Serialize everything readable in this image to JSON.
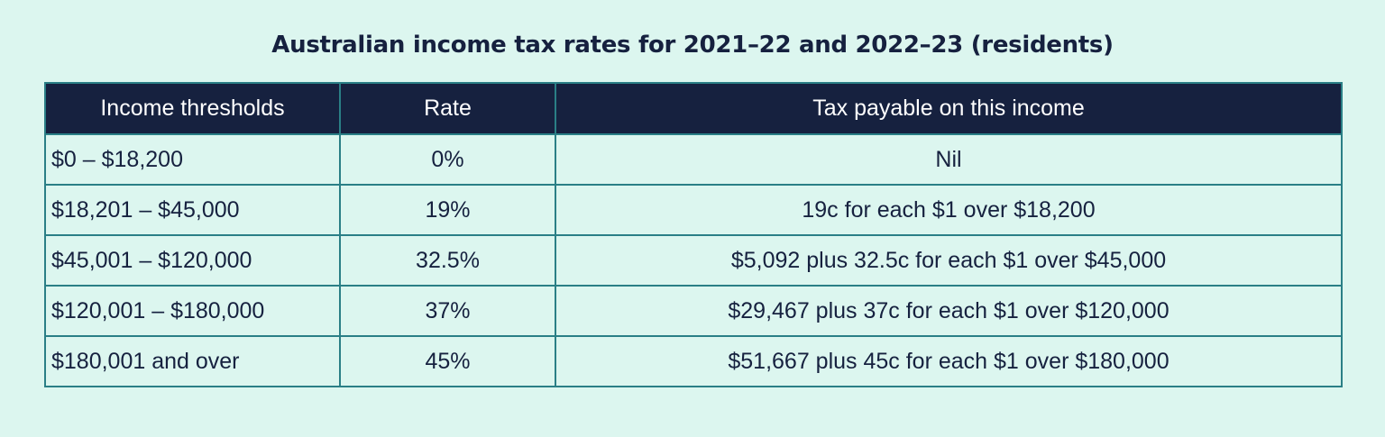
{
  "title": "Australian income tax rates for 2021–22 and 2022–23 (residents)",
  "table": {
    "headers": [
      "Income thresholds",
      "Rate",
      "Tax payable on this income"
    ],
    "rows": [
      [
        "$0 – $18,200",
        "0%",
        "Nil"
      ],
      [
        "$18,201 – $45,000",
        "19%",
        "19c for each $1 over $18,200"
      ],
      [
        "$45,001 – $120,000",
        "32.5%",
        "$5,092 plus 32.5c for each $1 over $45,000"
      ],
      [
        "$120,001 – $180,000",
        "37%",
        "$29,467 plus 37c for each $1 over $120,000"
      ],
      [
        "$180,001 and over",
        "45%",
        "$51,667 plus 45c for each $1 over $180,000"
      ]
    ]
  },
  "colors": {
    "background": "#dcf6ef",
    "header_background": "#16213f",
    "text": "#16213f",
    "border": "#2a7f86"
  }
}
